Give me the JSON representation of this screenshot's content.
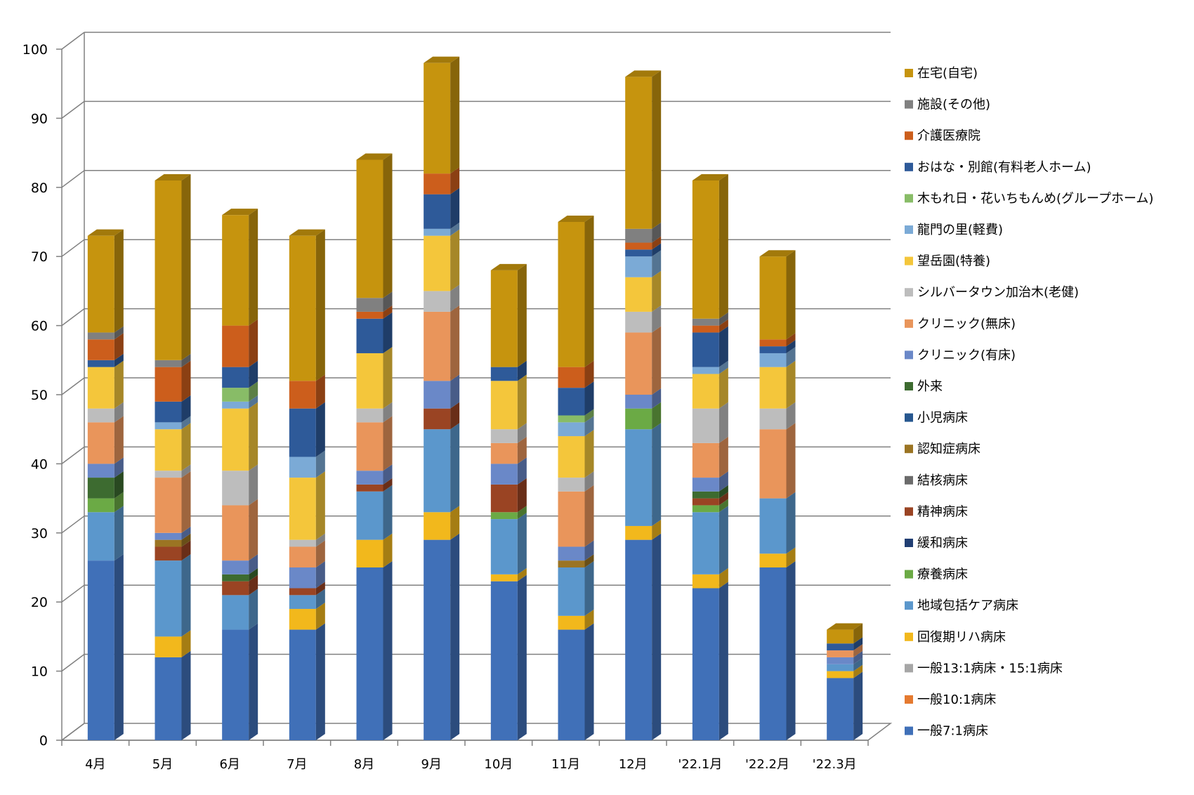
{
  "chart_data": {
    "type": "bar",
    "stacked": true,
    "style_3d": true,
    "grid": true,
    "legend_position": "right",
    "ylim": [
      0,
      100
    ],
    "yticks": [
      0,
      10,
      20,
      30,
      40,
      50,
      60,
      70,
      80,
      90,
      100
    ],
    "categories": [
      "4月",
      "5月",
      "6月",
      "7月",
      "8月",
      "9月",
      "10月",
      "11月",
      "12月",
      "'22.1月",
      "'22.2月",
      "'22.3月"
    ],
    "series": [
      {
        "name": "一般7:1病床",
        "color": "#4070B8",
        "values": [
          26,
          12,
          16,
          16,
          25,
          29,
          23,
          16,
          29,
          22,
          25,
          9
        ]
      },
      {
        "name": "一般10:1病床",
        "color": "#E57A30",
        "values": [
          0,
          0,
          0,
          0,
          0,
          0,
          0,
          0,
          0,
          0,
          0,
          0
        ]
      },
      {
        "name": "一般13:1病床・15:1病床",
        "color": "#A6A6A6",
        "values": [
          0,
          0,
          0,
          0,
          0,
          0,
          0,
          0,
          0,
          0,
          0,
          0
        ]
      },
      {
        "name": "回復期リハ病床",
        "color": "#F2B81C",
        "values": [
          0,
          3,
          0,
          3,
          4,
          4,
          1,
          2,
          2,
          2,
          2,
          1
        ]
      },
      {
        "name": "地域包括ケア病床",
        "color": "#5B97CC",
        "values": [
          7,
          11,
          5,
          2,
          7,
          12,
          8,
          7,
          14,
          9,
          8,
          1
        ]
      },
      {
        "name": "療養病床",
        "color": "#6BAA45",
        "values": [
          2,
          0,
          0,
          0,
          0,
          0,
          1,
          0,
          3,
          1,
          0,
          0
        ]
      },
      {
        "name": "緩和病床",
        "color": "#213F73",
        "values": [
          0,
          0,
          0,
          0,
          0,
          0,
          0,
          0,
          0,
          0,
          0,
          0
        ]
      },
      {
        "name": "精神病床",
        "color": "#9A4423",
        "values": [
          0,
          2,
          2,
          1,
          1,
          3,
          4,
          0,
          0,
          1,
          0,
          0
        ]
      },
      {
        "name": "結核病床",
        "color": "#6B6B6B",
        "values": [
          0,
          0,
          0,
          0,
          0,
          0,
          0,
          0,
          0,
          0,
          0,
          0
        ]
      },
      {
        "name": "認知症病床",
        "color": "#9B7423",
        "values": [
          0,
          1,
          0,
          0,
          0,
          0,
          0,
          1,
          0,
          0,
          0,
          0
        ]
      },
      {
        "name": "小児病床",
        "color": "#27578F",
        "values": [
          0,
          0,
          0,
          0,
          0,
          0,
          0,
          0,
          0,
          0,
          0,
          0
        ]
      },
      {
        "name": "外来",
        "color": "#3D6B30",
        "values": [
          3,
          0,
          1,
          0,
          0,
          0,
          0,
          0,
          0,
          1,
          0,
          0
        ]
      },
      {
        "name": "クリニック(有床)",
        "color": "#6A88C8",
        "values": [
          2,
          1,
          2,
          3,
          2,
          4,
          3,
          2,
          2,
          2,
          0,
          1
        ]
      },
      {
        "name": "クリニック(無床)",
        "color": "#E9955B",
        "values": [
          6,
          8,
          8,
          3,
          7,
          10,
          3,
          8,
          9,
          5,
          10,
          1
        ]
      },
      {
        "name": "シルバータウン加治木(老健)",
        "color": "#BDBDBD",
        "values": [
          2,
          1,
          5,
          1,
          2,
          3,
          2,
          2,
          3,
          5,
          3,
          0
        ]
      },
      {
        "name": "望岳園(特養)",
        "color": "#F4C63B",
        "values": [
          6,
          6,
          9,
          9,
          8,
          8,
          7,
          6,
          5,
          5,
          6,
          0
        ]
      },
      {
        "name": "龍門の里(軽費)",
        "color": "#7BAAD6",
        "values": [
          0,
          1,
          1,
          3,
          0,
          1,
          0,
          2,
          3,
          1,
          2,
          0
        ]
      },
      {
        "name": "木もれ日・花いちもんめ(グループホーム)",
        "color": "#88BC67",
        "values": [
          0,
          0,
          2,
          0,
          0,
          0,
          0,
          1,
          0,
          0,
          0,
          0
        ]
      },
      {
        "name": "おはな・別館(有料老人ホーム)",
        "color": "#2E5A99",
        "values": [
          1,
          3,
          3,
          7,
          5,
          5,
          2,
          4,
          1,
          5,
          1,
          1
        ]
      },
      {
        "name": "介護医療院",
        "color": "#CC5E1C",
        "values": [
          3,
          5,
          6,
          4,
          1,
          3,
          0,
          3,
          1,
          1,
          1,
          0
        ]
      },
      {
        "name": "施設(その他)",
        "color": "#808080",
        "values": [
          1,
          1,
          0,
          0,
          2,
          0,
          0,
          0,
          2,
          1,
          0,
          0
        ]
      },
      {
        "name": "在宅(自宅)",
        "color": "#C6940E",
        "values": [
          14,
          26,
          16,
          21,
          20,
          16,
          14,
          21,
          22,
          20,
          12,
          2
        ]
      }
    ]
  }
}
